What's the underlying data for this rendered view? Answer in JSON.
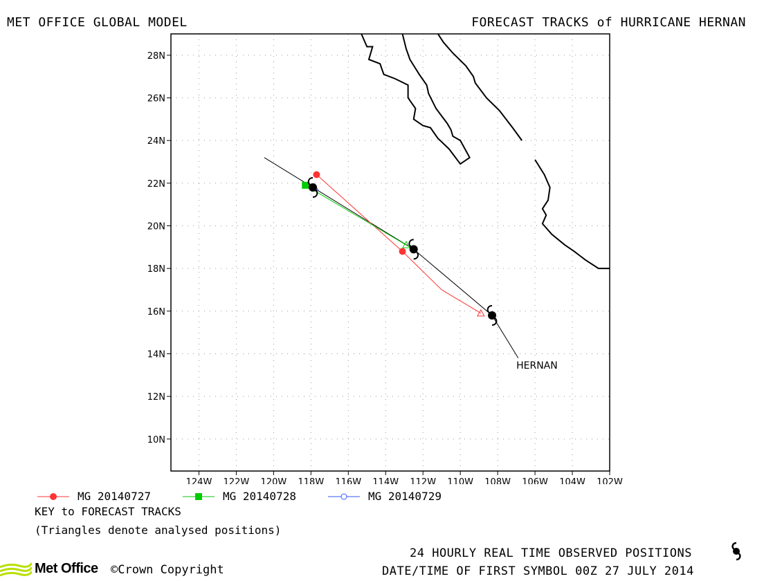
{
  "header": {
    "left": "MET OFFICE GLOBAL MODEL",
    "right": "FORECAST TRACKS of HURRICANE HERNAN"
  },
  "map": {
    "lon_range": [
      -125.5,
      -102
    ],
    "lat_range": [
      8.5,
      29
    ],
    "lat_ticks": [
      {
        "value": 28,
        "label": "28N"
      },
      {
        "value": 26,
        "label": "26N"
      },
      {
        "value": 24,
        "label": "24N"
      },
      {
        "value": 22,
        "label": "22N"
      },
      {
        "value": 20,
        "label": "20N"
      },
      {
        "value": 18,
        "label": "18N"
      },
      {
        "value": 16,
        "label": "16N"
      },
      {
        "value": 14,
        "label": "14N"
      },
      {
        "value": 12,
        "label": "12N"
      },
      {
        "value": 10,
        "label": "10N"
      }
    ],
    "lon_ticks": [
      {
        "value": -124,
        "label": "124W"
      },
      {
        "value": -122,
        "label": "122W"
      },
      {
        "value": -120,
        "label": "120W"
      },
      {
        "value": -118,
        "label": "118W"
      },
      {
        "value": -116,
        "label": "116W"
      },
      {
        "value": -114,
        "label": "114W"
      },
      {
        "value": -112,
        "label": "112W"
      },
      {
        "value": -110,
        "label": "110W"
      },
      {
        "value": -108,
        "label": "108W"
      },
      {
        "value": -106,
        "label": "106W"
      },
      {
        "value": -104,
        "label": "104W"
      },
      {
        "value": -102,
        "label": "102W"
      }
    ],
    "storm_label": "HERNAN",
    "storm_label_position": {
      "lon": -107.0,
      "lat": 13.3
    },
    "observed_track": [
      [
        -106.9,
        13.8
      ],
      [
        -108.3,
        15.8
      ],
      [
        -112.5,
        18.9
      ],
      [
        -117.9,
        21.8
      ],
      [
        -120.5,
        23.2
      ]
    ],
    "observed_positions": [
      [
        -108.3,
        15.8
      ],
      [
        -112.5,
        18.9
      ],
      [
        -117.9,
        21.8
      ]
    ],
    "forecasts": [
      {
        "name": "MG 20140727",
        "color": "#ff3333",
        "marker": "circle",
        "track": [
          [
            -108.9,
            15.9
          ],
          [
            -111.0,
            17.0
          ],
          [
            -113.1,
            18.8
          ],
          [
            -117.7,
            22.4
          ]
        ],
        "analysed": [
          -108.9,
          15.9
        ],
        "markers": [
          [
            -113.1,
            18.8
          ],
          [
            -117.7,
            22.4
          ]
        ]
      },
      {
        "name": "MG 20140728",
        "color": "#00cc00",
        "marker": "square",
        "track": [
          [
            -112.9,
            19.1
          ],
          [
            -118.3,
            21.9
          ]
        ],
        "analysed": [
          -112.9,
          19.1
        ],
        "markers": [
          [
            -118.3,
            21.9
          ]
        ]
      },
      {
        "name": "MG 20140729",
        "color": "#3355ff",
        "marker": "open-circle",
        "track": [
          [
            -117.8,
            21.8
          ],
          [
            -117.9,
            21.8
          ]
        ],
        "analysed": [
          -117.8,
          21.8
        ],
        "markers": [
          [
            -117.9,
            21.8
          ]
        ]
      }
    ],
    "coastlines": [
      [
        [
          -115.3,
          29.0
        ],
        [
          -115.0,
          28.4
        ],
        [
          -114.7,
          28.4
        ],
        [
          -114.9,
          27.8
        ],
        [
          -114.3,
          27.6
        ],
        [
          -114.1,
          27.1
        ],
        [
          -113.5,
          26.9
        ],
        [
          -112.8,
          26.6
        ],
        [
          -112.8,
          26.0
        ],
        [
          -112.4,
          25.5
        ],
        [
          -112.5,
          25.0
        ],
        [
          -112.0,
          24.7
        ],
        [
          -111.6,
          24.6
        ],
        [
          -111.2,
          24.1
        ],
        [
          -110.6,
          23.6
        ],
        [
          -110.0,
          22.9
        ],
        [
          -109.5,
          23.2
        ],
        [
          -110.0,
          24.0
        ],
        [
          -110.4,
          24.2
        ],
        [
          -110.5,
          24.5
        ],
        [
          -110.7,
          24.8
        ],
        [
          -111.3,
          25.5
        ],
        [
          -111.7,
          26.2
        ],
        [
          -111.8,
          26.6
        ],
        [
          -112.2,
          27.1
        ],
        [
          -112.7,
          27.8
        ],
        [
          -112.9,
          28.3
        ],
        [
          -113.1,
          29.0
        ]
      ],
      [
        [
          -111.2,
          29.0
        ],
        [
          -110.9,
          28.6
        ],
        [
          -110.4,
          28.1
        ],
        [
          -109.7,
          27.5
        ],
        [
          -109.3,
          27.0
        ],
        [
          -109.2,
          26.7
        ],
        [
          -108.6,
          26.0
        ],
        [
          -107.9,
          25.4
        ],
        [
          -107.2,
          24.6
        ],
        [
          -106.7,
          24.0
        ]
      ],
      [
        [
          -106.0,
          23.1
        ],
        [
          -105.5,
          22.4
        ],
        [
          -105.2,
          21.8
        ],
        [
          -105.3,
          21.2
        ],
        [
          -105.6,
          20.8
        ],
        [
          -105.4,
          20.5
        ],
        [
          -105.6,
          20.1
        ],
        [
          -105.1,
          19.6
        ],
        [
          -104.4,
          19.1
        ],
        [
          -103.9,
          18.8
        ],
        [
          -103.6,
          18.6
        ],
        [
          -103.3,
          18.4
        ],
        [
          -102.6,
          18.0
        ],
        [
          -102.0,
          18.0
        ]
      ]
    ]
  },
  "legend": [
    {
      "label": "MG 20140727",
      "color": "#ff3333",
      "marker": "circle"
    },
    {
      "label": "MG 20140728",
      "color": "#00cc00",
      "marker": "square"
    },
    {
      "label": "MG 20140729",
      "color": "#3355ff",
      "marker": "open-circle"
    }
  ],
  "key": {
    "title": "KEY to FORECAST TRACKS",
    "note": "(Triangles denote analysed positions)"
  },
  "footer": {
    "observed": "24 HOURLY REAL TIME OBSERVED POSITIONS",
    "date_time": "DATE/TIME OF FIRST SYMBOL 00Z 27 JULY 2014",
    "logo": "Met Office",
    "copyright": "©Crown Copyright"
  },
  "icons": {
    "hurricane": "hurricane-symbol-icon"
  }
}
